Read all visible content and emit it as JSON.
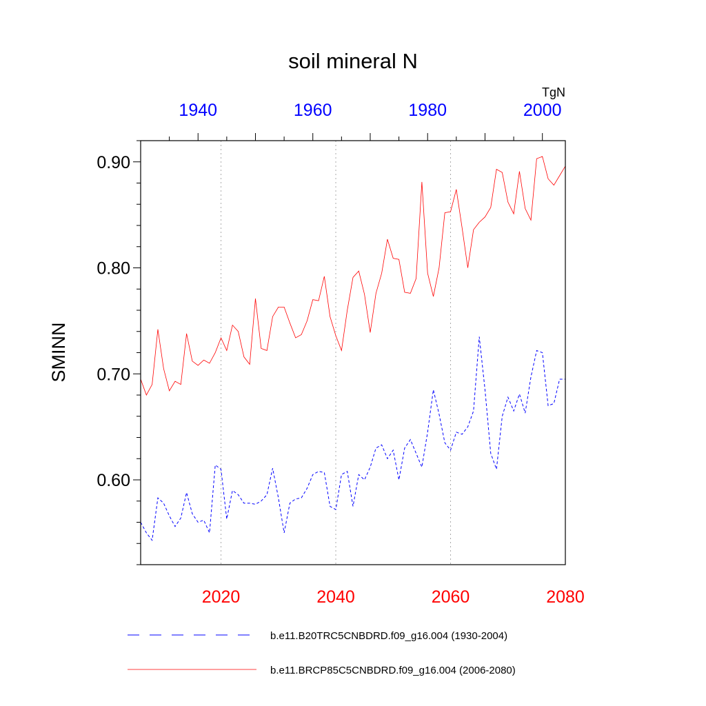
{
  "chart_data": {
    "type": "line",
    "title": "soil mineral N",
    "ylabel": "SMINN",
    "units": "TgN",
    "ylim": [
      0.52,
      0.92
    ],
    "yticks": [
      0.6,
      0.7,
      0.8,
      0.9
    ],
    "ytick_labels": [
      "0.60",
      "0.70",
      "0.80",
      "0.90"
    ],
    "grid": "vertical dotted at labeled years",
    "bottom_axis": {
      "range": [
        2006,
        2080
      ],
      "ticks": [
        2020,
        2040,
        2060,
        2080
      ],
      "tick_labels": [
        "2020",
        "2040",
        "2060",
        "2080"
      ],
      "color": "#ff0000"
    },
    "top_axis": {
      "range": [
        1930,
        2004
      ],
      "ticks": [
        1940,
        1960,
        1980,
        2000
      ],
      "tick_labels": [
        "1940",
        "1960",
        "1980",
        "2000"
      ],
      "color": "#0000ff"
    },
    "legend_placement": "bottom",
    "series": [
      {
        "name": "b.e11.B20TRC5CNBDRD.f09_g16.004 (1930-2004)",
        "axis": "top",
        "style": "dashed",
        "color": "#0000ff",
        "x": [
          1930,
          1931,
          1932,
          1933,
          1934,
          1935,
          1936,
          1937,
          1938,
          1939,
          1940,
          1941,
          1942,
          1943,
          1944,
          1945,
          1946,
          1947,
          1948,
          1949,
          1950,
          1951,
          1952,
          1953,
          1954,
          1955,
          1956,
          1957,
          1958,
          1959,
          1960,
          1961,
          1962,
          1963,
          1964,
          1965,
          1966,
          1967,
          1968,
          1969,
          1970,
          1971,
          1972,
          1973,
          1974,
          1975,
          1976,
          1977,
          1978,
          1979,
          1980,
          1981,
          1982,
          1983,
          1984,
          1985,
          1986,
          1987,
          1988,
          1989,
          1990,
          1991,
          1992,
          1993,
          1994,
          1995,
          1996,
          1997,
          1998,
          1999,
          2000,
          2001,
          2002,
          2003,
          2004
        ],
        "values": [
          0.56,
          0.55,
          0.543,
          0.583,
          0.578,
          0.566,
          0.556,
          0.564,
          0.588,
          0.568,
          0.56,
          0.562,
          0.55,
          0.614,
          0.61,
          0.563,
          0.59,
          0.586,
          0.578,
          0.578,
          0.577,
          0.58,
          0.586,
          0.611,
          0.583,
          0.55,
          0.578,
          0.582,
          0.583,
          0.592,
          0.605,
          0.608,
          0.607,
          0.575,
          0.572,
          0.605,
          0.608,
          0.575,
          0.605,
          0.6,
          0.612,
          0.63,
          0.633,
          0.62,
          0.628,
          0.6,
          0.63,
          0.638,
          0.625,
          0.612,
          0.645,
          0.685,
          0.662,
          0.635,
          0.628,
          0.645,
          0.643,
          0.65,
          0.665,
          0.735,
          0.685,
          0.625,
          0.61,
          0.66,
          0.678,
          0.665,
          0.681,
          0.663,
          0.697,
          0.722,
          0.72,
          0.67,
          0.672,
          0.695,
          0.695
        ]
      },
      {
        "name": "b.e11.BRCP85C5CNBDRD.f09_g16.004 (2006-2080)",
        "axis": "bottom",
        "style": "solid",
        "color": "#ff0000",
        "x": [
          2006,
          2007,
          2008,
          2009,
          2010,
          2011,
          2012,
          2013,
          2014,
          2015,
          2016,
          2017,
          2018,
          2019,
          2020,
          2021,
          2022,
          2023,
          2024,
          2025,
          2026,
          2027,
          2028,
          2029,
          2030,
          2031,
          2032,
          2033,
          2034,
          2035,
          2036,
          2037,
          2038,
          2039,
          2040,
          2041,
          2042,
          2043,
          2044,
          2045,
          2046,
          2047,
          2048,
          2049,
          2050,
          2051,
          2052,
          2053,
          2054,
          2055,
          2056,
          2057,
          2058,
          2059,
          2060,
          2061,
          2062,
          2063,
          2064,
          2065,
          2066,
          2067,
          2068,
          2069,
          2070,
          2071,
          2072,
          2073,
          2074,
          2075,
          2076,
          2077,
          2078,
          2079,
          2080
        ],
        "values": [
          0.695,
          0.68,
          0.69,
          0.742,
          0.705,
          0.684,
          0.693,
          0.69,
          0.738,
          0.712,
          0.708,
          0.713,
          0.71,
          0.72,
          0.734,
          0.722,
          0.746,
          0.74,
          0.716,
          0.709,
          0.771,
          0.724,
          0.722,
          0.754,
          0.763,
          0.763,
          0.748,
          0.734,
          0.737,
          0.75,
          0.77,
          0.769,
          0.792,
          0.754,
          0.736,
          0.722,
          0.76,
          0.791,
          0.797,
          0.775,
          0.739,
          0.776,
          0.795,
          0.827,
          0.809,
          0.808,
          0.777,
          0.776,
          0.79,
          0.881,
          0.795,
          0.773,
          0.8,
          0.852,
          0.853,
          0.874,
          0.838,
          0.8,
          0.836,
          0.843,
          0.848,
          0.857,
          0.893,
          0.89,
          0.862,
          0.851,
          0.891,
          0.856,
          0.845,
          0.903,
          0.905,
          0.884,
          0.878,
          0.887,
          0.896
        ]
      }
    ]
  }
}
